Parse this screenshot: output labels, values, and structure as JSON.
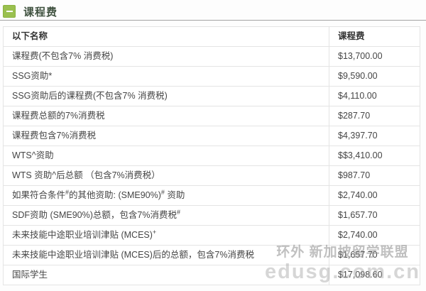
{
  "header": {
    "title": "课程费"
  },
  "table": {
    "columns": [
      "以下名称",
      "课程费"
    ],
    "rows": [
      {
        "label_parts": [
          {
            "t": "课程费(不包含7% 消费税)"
          }
        ],
        "value": "$13,700.00"
      },
      {
        "label_parts": [
          {
            "t": "SSG资助*"
          }
        ],
        "value": "$9,590.00"
      },
      {
        "label_parts": [
          {
            "t": "SSG资助后的课程费(不包含7% 消费税)"
          }
        ],
        "value": "$4,110.00"
      },
      {
        "label_parts": [
          {
            "t": "课程费总额的7%消费税"
          }
        ],
        "value": "$287.70"
      },
      {
        "label_parts": [
          {
            "t": "课程费包含7%消费税"
          }
        ],
        "value": "$4,397.70"
      },
      {
        "label_parts": [
          {
            "t": "WTS^资助"
          }
        ],
        "value": "$$3,410.00"
      },
      {
        "label_parts": [
          {
            "t": "WTS 资助^后总额 （包含7%消费税）"
          }
        ],
        "value": "$987.70"
      },
      {
        "label_parts": [
          {
            "t": "如果符合条件"
          },
          {
            "t": "#",
            "sup": true
          },
          {
            "t": "的其他资助: (SME90%)"
          },
          {
            "t": "#",
            "sup": true
          },
          {
            "t": " 资助"
          }
        ],
        "value": "$2,740.00"
      },
      {
        "label_parts": [
          {
            "t": "SDF资助 (SME90%)总额，包含7%消费税"
          },
          {
            "t": "#",
            "sup": true
          }
        ],
        "value": "$1,657.70"
      },
      {
        "label_parts": [
          {
            "t": "未来技能中途职业培训津贴 (MCES)"
          },
          {
            "t": "+",
            "sup": true
          }
        ],
        "value": "$2,740.00"
      },
      {
        "label_parts": [
          {
            "t": "未来技能中途职业培训津贴 (MCES)后的总额，包含7%消费税"
          }
        ],
        "value": "$1,657.70"
      },
      {
        "label_parts": [
          {
            "t": "国际学生"
          }
        ],
        "value": "$17,098.60"
      }
    ]
  },
  "watermark": {
    "line1": "环外 新加坡留学联盟",
    "line2": "edusg.com.cn"
  },
  "colors": {
    "accent_green": "#9ac04f",
    "title_text": "#3f513f",
    "body_text": "#454545",
    "border": "#e4e4e4"
  }
}
